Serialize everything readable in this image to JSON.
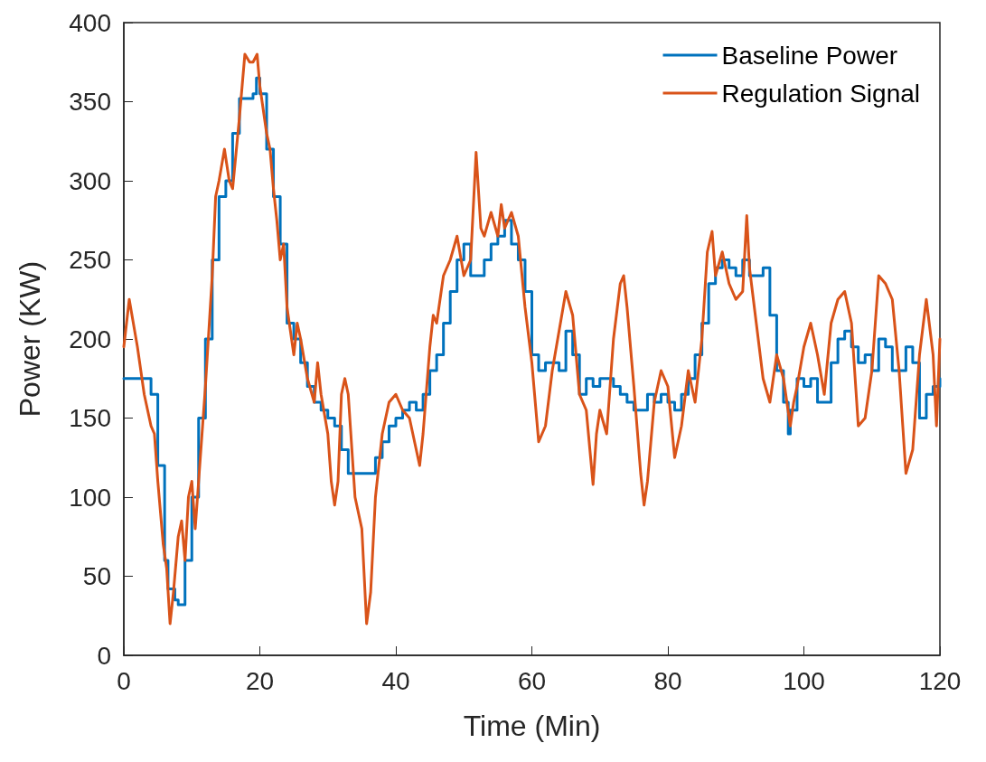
{
  "chart_data": {
    "type": "line",
    "xlabel": "Time (Min)",
    "ylabel": "Power (KW)",
    "xlim": [
      0,
      120
    ],
    "xticks": [
      0,
      20,
      40,
      60,
      80,
      100,
      120
    ],
    "ylim": [
      0,
      400
    ],
    "yticks": [
      0,
      50,
      100,
      150,
      200,
      250,
      300,
      350,
      400
    ],
    "grid": false,
    "legend": "top right",
    "marker": "none",
    "line_style": "solid",
    "series": [
      {
        "name": "Baseline Power",
        "type": "step",
        "color": "#0072bd",
        "x": [
          0,
          3.5,
          4,
          5,
          6,
          6.5,
          7.5,
          8,
          9,
          10,
          11,
          12,
          13,
          14,
          15,
          16,
          17,
          18,
          19,
          19.5,
          20,
          21,
          22,
          23,
          24,
          25,
          26,
          27,
          28,
          29,
          30,
          31,
          32,
          33,
          35,
          36,
          37,
          38,
          39,
          40,
          41,
          42,
          43,
          44,
          45,
          46,
          47,
          48,
          49,
          50,
          51,
          52,
          53,
          54,
          55,
          56,
          57,
          58,
          59,
          60,
          61,
          62,
          63,
          64,
          65,
          66,
          67,
          68,
          69,
          70,
          71,
          72,
          73,
          74,
          75,
          76,
          77,
          78,
          79,
          80,
          81,
          82,
          83,
          84,
          85,
          86,
          87,
          88,
          89,
          90,
          91,
          92,
          93,
          94,
          95,
          96,
          97,
          97.7,
          98,
          99,
          100,
          101,
          102,
          103,
          104,
          105,
          106,
          107,
          108,
          109,
          110,
          111,
          112,
          113,
          114,
          115,
          116,
          117,
          118,
          119,
          120
        ],
        "values": [
          175,
          175,
          165,
          120,
          60,
          42,
          35,
          32,
          60,
          100,
          150,
          200,
          250,
          290,
          300,
          330,
          352,
          352,
          355,
          365,
          355,
          320,
          290,
          260,
          210,
          200,
          185,
          170,
          160,
          155,
          150,
          145,
          130,
          115,
          115,
          115,
          125,
          135,
          145,
          150,
          155,
          160,
          155,
          165,
          180,
          190,
          210,
          230,
          250,
          260,
          240,
          240,
          250,
          260,
          265,
          275,
          260,
          250,
          230,
          190,
          180,
          185,
          185,
          180,
          205,
          190,
          165,
          175,
          170,
          175,
          175,
          170,
          165,
          160,
          155,
          155,
          165,
          160,
          165,
          160,
          155,
          165,
          175,
          190,
          210,
          235,
          245,
          250,
          245,
          240,
          250,
          240,
          240,
          245,
          215,
          180,
          160,
          140,
          155,
          175,
          170,
          175,
          160,
          160,
          185,
          200,
          205,
          195,
          185,
          190,
          180,
          200,
          195,
          180,
          180,
          195,
          185,
          150,
          165,
          170,
          175
        ]
      },
      {
        "name": "Regulation Signal",
        "type": "line",
        "color": "#d95319",
        "x": [
          0,
          0.8,
          2,
          3,
          4,
          4.5,
          5,
          5.8,
          6.3,
          6.8,
          7.3,
          8,
          8.5,
          9,
          9.5,
          10,
          10.5,
          11,
          12,
          13,
          13.5,
          14,
          14.8,
          15.5,
          16,
          17,
          17.8,
          18.5,
          19,
          19.6,
          20,
          21,
          21.5,
          22,
          22.5,
          23,
          23.5,
          24,
          25,
          25.5,
          26,
          27,
          28,
          28.5,
          29,
          30,
          30.5,
          31,
          31.5,
          32,
          32.5,
          33,
          34,
          35,
          35.7,
          36.3,
          37,
          38,
          39,
          40,
          41,
          42,
          43,
          43.5,
          44,
          45,
          45.5,
          46,
          47,
          48,
          49,
          50,
          51,
          51.8,
          52.5,
          53,
          54,
          55,
          55.5,
          56,
          57,
          58,
          59,
          60,
          61,
          62,
          63,
          64,
          65,
          66,
          67,
          68,
          69,
          69.5,
          70,
          71,
          72,
          73,
          73.5,
          74,
          75,
          76,
          76.5,
          77,
          78,
          79,
          80,
          81,
          82,
          83,
          84,
          85,
          85.8,
          86.5,
          87,
          88,
          89,
          90,
          91,
          91.6,
          92,
          93,
          94,
          95,
          96,
          97,
          98,
          98.5,
          99,
          100,
          101,
          102,
          103,
          104,
          105,
          106,
          107,
          108,
          109,
          110,
          111,
          112,
          113,
          114,
          115,
          116,
          117,
          118,
          119,
          119.5,
          120
        ],
        "values": [
          195,
          225,
          195,
          165,
          145,
          140,
          110,
          70,
          55,
          20,
          40,
          75,
          85,
          60,
          100,
          110,
          80,
          110,
          170,
          240,
          290,
          300,
          320,
          300,
          295,
          340,
          380,
          375,
          375,
          380,
          360,
          330,
          320,
          295,
          275,
          250,
          260,
          220,
          190,
          210,
          200,
          175,
          160,
          185,
          165,
          140,
          110,
          95,
          110,
          165,
          175,
          165,
          100,
          80,
          20,
          40,
          100,
          140,
          160,
          165,
          155,
          150,
          130,
          120,
          140,
          195,
          215,
          210,
          240,
          250,
          265,
          240,
          250,
          318,
          270,
          265,
          280,
          265,
          285,
          270,
          280,
          265,
          220,
          185,
          135,
          145,
          180,
          205,
          230,
          215,
          165,
          155,
          108,
          140,
          155,
          140,
          200,
          235,
          240,
          220,
          170,
          115,
          95,
          110,
          160,
          180,
          170,
          125,
          145,
          180,
          160,
          200,
          255,
          268,
          240,
          255,
          235,
          225,
          230,
          278,
          245,
          210,
          175,
          160,
          190,
          175,
          145,
          160,
          170,
          195,
          210,
          190,
          165,
          210,
          225,
          230,
          210,
          145,
          150,
          180,
          240,
          235,
          225,
          180,
          115,
          130,
          190,
          225,
          190,
          145,
          200
        ]
      }
    ]
  }
}
